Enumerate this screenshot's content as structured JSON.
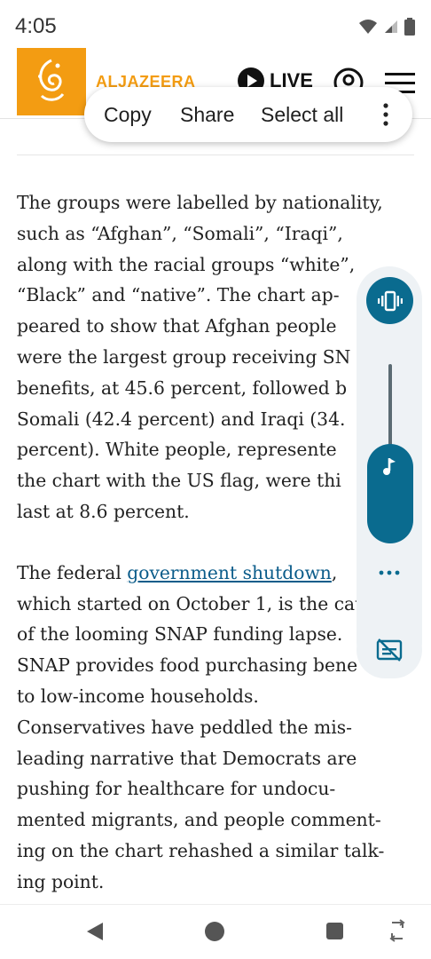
{
  "status_bar": {
    "time": "4:05",
    "icons": [
      "wifi-icon",
      "signal-icon",
      "battery-icon"
    ]
  },
  "header": {
    "logo_text": "ALJAZEERA",
    "live_label": "LIVE",
    "icons": [
      "play-icon",
      "account-icon",
      "menu-icon"
    ],
    "brand_color": "#f39c12"
  },
  "selection_popup": {
    "copy": "Copy",
    "share": "Share",
    "select_all": "Select all",
    "more_icon": "more-vert-icon"
  },
  "article": {
    "paragraph1": "The groups were labelled by nationality,\nsuch as “Afghan”, “Somali”, “Iraqi”,\nalong with the racial groups “white”,\n“Black” and “native”. The chart ap-\npeared to show that Afghan people\nwere the largest group receiving SN\nbenefits, at 45.6 percent, followed b\nSomali (42.4 percent) and Iraqi (34.\npercent). White people, represente\nthe chart with the US flag, were thi\nlast at 8.6 percent.",
    "paragraph2_start": "The federal ",
    "paragraph2_link": "government shutdown",
    "paragraph2_rest": ",\nwhich started on October 1, is the cause\nof the looming SNAP funding lapse.\nSNAP provides food purchasing bene\nto low-income households.\nConservatives have peddled the mis-\nleading narrative that Democrats are\npushing for healthcare for undocu-\nmented migrants, and people comment-\ning on the chart rehashed a similar talk-\ning point.",
    "link_color": "#0b5c8a"
  },
  "volume_panel": {
    "mode_icon": "vibrate-icon",
    "stream_icon": "music-note-icon",
    "more_icon": "more-horiz-icon",
    "caption_icon": "captions-off-icon",
    "level": 0.5,
    "accent_color": "#0a6b8f"
  },
  "nav_bar": {
    "icons": [
      "back-icon",
      "home-icon",
      "recents-icon",
      "rotate-icon"
    ]
  }
}
